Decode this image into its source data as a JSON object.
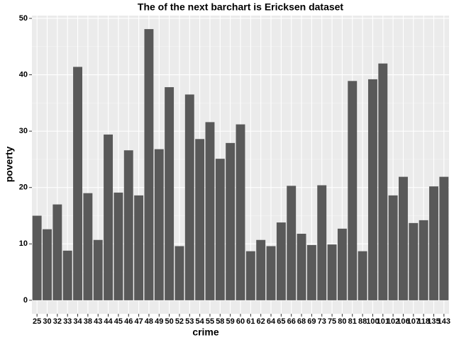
{
  "chart_data": {
    "type": "bar",
    "title": "The of the next barchart is Ericksen dataset",
    "x_label": "crime",
    "y_label": "poverty",
    "categories": [
      "25",
      "30",
      "32",
      "33",
      "34",
      "38",
      "43",
      "44",
      "45",
      "46",
      "47",
      "48",
      "49",
      "50",
      "52",
      "53",
      "54",
      "55",
      "58",
      "59",
      "60",
      "61",
      "62",
      "64",
      "65",
      "66",
      "68",
      "69",
      "73",
      "75",
      "80",
      "81",
      "88",
      "100",
      "101",
      "102",
      "106",
      "107",
      "118",
      "135",
      "143"
    ],
    "values": [
      15,
      12.6,
      17,
      8.8,
      41.4,
      19,
      10.7,
      29.4,
      19.1,
      26.6,
      18.6,
      48.1,
      26.8,
      37.8,
      9.6,
      36.5,
      28.6,
      31.6,
      25.1,
      27.9,
      31.2,
      8.7,
      10.7,
      9.6,
      13.8,
      20.3,
      11.8,
      9.8,
      20.4,
      9.9,
      12.7,
      38.9,
      8.7,
      39.2,
      42,
      18.6,
      21.9,
      13.7,
      14.2,
      20.2,
      21.9
    ],
    "color": "#595959",
    "ylim": [
      -2.4,
      50.5
    ],
    "yticks": [
      0,
      10,
      20,
      30,
      40,
      50
    ],
    "grid": true
  }
}
